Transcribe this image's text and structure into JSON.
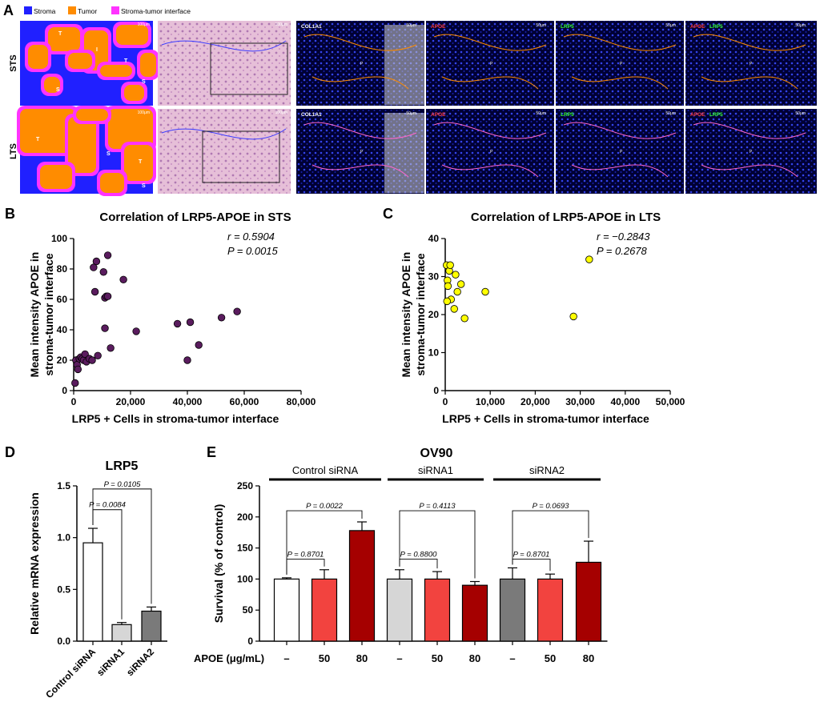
{
  "panel_a": {
    "letter": "A",
    "legend": [
      {
        "label": "Stroma",
        "color": "#2020ff"
      },
      {
        "label": "Tumor",
        "color": "#ff8c00"
      },
      {
        "label": "Stroma-tumor interface",
        "color": "#ff33ff"
      }
    ],
    "rows": [
      "STS",
      "LTS"
    ],
    "region_letters": {
      "tumor": "T",
      "stroma": "S",
      "interface": "I",
      "p": "P"
    },
    "scale_small": "100μm",
    "scale_large": "50μm",
    "channels": [
      {
        "label": "COL1A1",
        "color": "#ffffff"
      },
      {
        "label": "APOE",
        "color": "#ff3b3b"
      },
      {
        "label": "LRP5",
        "color": "#33ff33"
      }
    ],
    "merge_label_apoe": "APOE",
    "merge_label_lrp5": "LRP5"
  },
  "chart_data": [
    {
      "letter": "B",
      "type": "scatter",
      "title": "Correlation of LRP5-APOE  in STS",
      "xlabel": "LRP5 + Cells in stroma-tumor interface",
      "ylabel": [
        "Mean intensity APOE in",
        "stroma-tumor interface"
      ],
      "xlim": [
        0,
        80000
      ],
      "ylim": [
        0,
        100
      ],
      "xticks": [
        0,
        20000,
        40000,
        60000,
        80000
      ],
      "xtick_labels": [
        "0",
        "20,000",
        "40,000",
        "60,000",
        "80,000"
      ],
      "yticks": [
        0,
        20,
        40,
        60,
        80,
        100
      ],
      "ytick_labels": [
        "0",
        "20",
        "40",
        "60",
        "80",
        "100"
      ],
      "stats": [
        "r = 0.5904",
        "P = 0.0015"
      ],
      "color": "#5a1c5e",
      "x": [
        500,
        800,
        1200,
        1500,
        2000,
        2500,
        3000,
        3500,
        4000,
        4500,
        5500,
        6500,
        7500,
        8000,
        8500,
        7000,
        10500,
        11000,
        11500,
        12000,
        11000,
        13000,
        17500,
        22000,
        36500,
        40000,
        41000,
        44000,
        52000,
        57500,
        12000
      ],
      "y": [
        5,
        20,
        17,
        14,
        21,
        22,
        21,
        20,
        24,
        19,
        21,
        20,
        65,
        85,
        23,
        81,
        78,
        61,
        62,
        89,
        41,
        28,
        73,
        39,
        44,
        20,
        45,
        30,
        48,
        52,
        62
      ]
    },
    {
      "letter": "C",
      "type": "scatter",
      "title": "Correlation of LRP5-APOE  in LTS",
      "xlabel": "LRP5 + Cells in stroma-tumor interface",
      "ylabel": [
        "Mean intensity APOE in",
        "stroma-tumor interface"
      ],
      "xlim": [
        0,
        50000
      ],
      "ylim": [
        0,
        40
      ],
      "xticks": [
        0,
        10000,
        20000,
        30000,
        40000,
        50000
      ],
      "xtick_labels": [
        "0",
        "10,000",
        "20,000",
        "30,000",
        "40,000",
        "50,000"
      ],
      "yticks": [
        0,
        10,
        20,
        30,
        40
      ],
      "ytick_labels": [
        "0",
        "10",
        "20",
        "30",
        "40"
      ],
      "stats": [
        "r = −0.2843",
        "P = 0.2678"
      ],
      "color": "#ffff00",
      "x": [
        300,
        500,
        600,
        900,
        1100,
        1300,
        2000,
        2300,
        2700,
        3500,
        4300,
        8900,
        28500,
        32000,
        400
      ],
      "y": [
        33,
        29,
        27.5,
        31.5,
        33,
        24,
        21.5,
        30.5,
        26,
        28,
        19,
        26,
        19.5,
        34.5,
        23.5
      ]
    },
    {
      "letter": "D",
      "type": "bar",
      "title": "LRP5",
      "ylabel": "Relative mRNA expression",
      "ylim": [
        0,
        1.5
      ],
      "yticks": [
        0,
        0.5,
        1.0,
        1.5
      ],
      "ytick_labels": [
        "0.0",
        "0.5",
        "1.0",
        "1.5"
      ],
      "categories": [
        "Control siRNA",
        "siRNA1",
        "siRNA2"
      ],
      "values": [
        0.95,
        0.16,
        0.29
      ],
      "errors": [
        0.14,
        0.02,
        0.04
      ],
      "colors": [
        "#ffffff",
        "#d6d6d6",
        "#7a7a7a"
      ],
      "brackets": [
        {
          "from": 0,
          "to": 1,
          "label": "P = 0.0084",
          "level": 1.27
        },
        {
          "from": 0,
          "to": 2,
          "label": "P = 0.0105",
          "level": 1.47
        }
      ]
    },
    {
      "letter": "E",
      "type": "bar",
      "title": "OV90",
      "ylabel": "Survival (% of control)",
      "ylim": [
        0,
        250
      ],
      "yticks": [
        0,
        50,
        100,
        150,
        200,
        250
      ],
      "ytick_labels": [
        "0",
        "50",
        "100",
        "150",
        "200",
        "250"
      ],
      "xaxis_label": "APOE (μg/mL)",
      "categories": [
        "–",
        "50",
        "80",
        "–",
        "50",
        "80",
        "–",
        "50",
        "80"
      ],
      "groups": [
        "Control siRNA",
        "siRNA1",
        "siRNA2"
      ],
      "values": [
        100,
        100,
        178,
        100,
        100,
        90,
        100,
        100,
        127
      ],
      "errors": [
        2,
        15,
        14,
        15,
        12,
        6,
        18,
        8,
        34
      ],
      "colors": [
        "#ffffff",
        "#f2433f",
        "#a50000",
        "#d6d6d6",
        "#f2433f",
        "#a50000",
        "#7a7a7a",
        "#f2433f",
        "#a50000"
      ],
      "brackets": [
        {
          "from": 0,
          "to": 1,
          "label": "P = 0.8701",
          "level": 132
        },
        {
          "from": 0,
          "to": 2,
          "label": "P = 0.0022",
          "level": 210
        },
        {
          "from": 3,
          "to": 4,
          "label": "P = 0.8800",
          "level": 132
        },
        {
          "from": 3,
          "to": 5,
          "label": "P = 0.4113",
          "level": 210
        },
        {
          "from": 6,
          "to": 7,
          "label": "P = 0.8701",
          "level": 132
        },
        {
          "from": 6,
          "to": 8,
          "label": "P = 0.0693",
          "level": 210
        }
      ]
    }
  ]
}
